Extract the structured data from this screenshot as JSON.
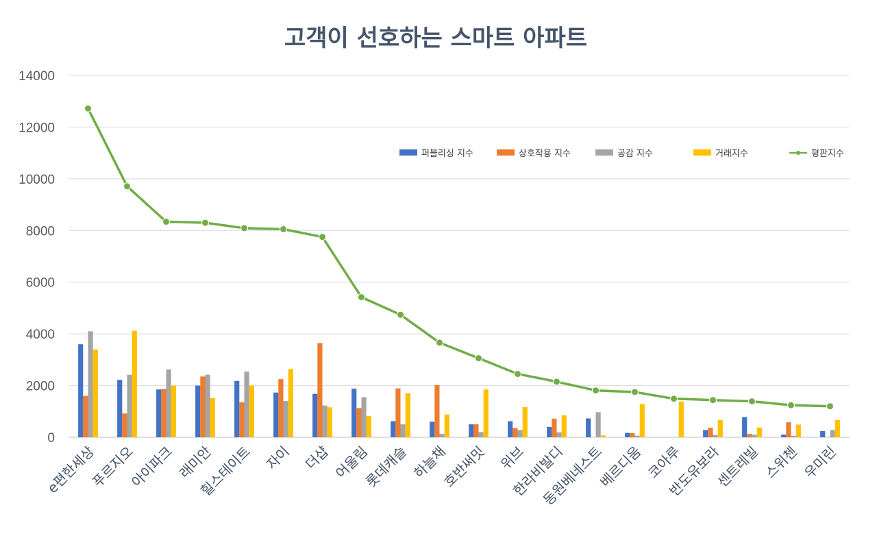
{
  "chart_data": {
    "type": "bar",
    "title": "고객이 선호하는 스마트 아파트",
    "categories": [
      "e편한세상",
      "푸르지오",
      "아이파크",
      "래미안",
      "힐스테이트",
      "자이",
      "더샵",
      "어울림",
      "롯데캐슬",
      "하늘채",
      "호반써밋",
      "위브",
      "한라비발디",
      "동원베네스트",
      "베르디움",
      "코아루",
      "반도유보라",
      "센트레빌",
      "스위첸",
      "우미린"
    ],
    "ylim": [
      0,
      14000
    ],
    "yticks": [
      "0",
      "2000",
      "4000",
      "6000",
      "8000",
      "10000",
      "12000",
      "14000"
    ],
    "grid": true,
    "legend_position": "top-right",
    "series": [
      {
        "name": "퍼블리싱 지수",
        "type": "bar",
        "color": "#4472c4",
        "values": [
          3600,
          2220,
          1850,
          2000,
          2180,
          1730,
          1680,
          1880,
          620,
          600,
          500,
          620,
          400,
          730,
          170,
          0,
          280,
          780,
          100,
          240
        ]
      },
      {
        "name": "상호작용 지수",
        "type": "bar",
        "color": "#ed7d31",
        "values": [
          1600,
          920,
          1870,
          2350,
          1350,
          2250,
          3640,
          1130,
          1890,
          2020,
          500,
          360,
          720,
          0,
          160,
          0,
          370,
          130,
          580,
          0
        ]
      },
      {
        "name": "공감 지수",
        "type": "bar",
        "color": "#a5a5a5",
        "values": [
          4100,
          2420,
          2620,
          2420,
          2540,
          1400,
          1230,
          1550,
          500,
          130,
          200,
          280,
          190,
          970,
          60,
          0,
          90,
          100,
          60,
          280
        ]
      },
      {
        "name": "거래지수",
        "type": "bar",
        "color": "#ffc000",
        "values": [
          3390,
          4120,
          2000,
          1510,
          2000,
          2640,
          1160,
          820,
          1710,
          880,
          1850,
          1170,
          850,
          70,
          1280,
          1380,
          670,
          380,
          490,
          670
        ]
      },
      {
        "name": "평판지수",
        "type": "line",
        "color": "#70ad47",
        "values": [
          12720,
          9710,
          8340,
          8300,
          8090,
          8050,
          7750,
          5420,
          4740,
          3660,
          3060,
          2450,
          2150,
          1810,
          1750,
          1490,
          1440,
          1390,
          1240,
          1200
        ]
      }
    ]
  }
}
